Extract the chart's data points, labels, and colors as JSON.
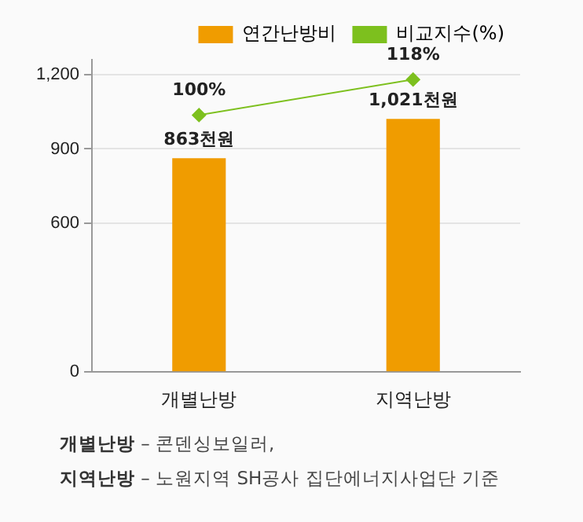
{
  "chart_data": {
    "type": "bar",
    "categories": [
      "개별난방",
      "지역난방"
    ],
    "series": [
      {
        "name": "연간난방비",
        "color": "#f09c00",
        "values": [
          863,
          1021
        ],
        "value_labels": [
          "863천원",
          "1,021천원"
        ]
      },
      {
        "name": "비교지수(%)",
        "type": "line",
        "axis": "y2",
        "color": "#7dc01e",
        "values": [
          100,
          118
        ],
        "value_labels": [
          "100%",
          "118%"
        ],
        "marker": "diamond"
      }
    ],
    "ylim": [
      0,
      1260
    ],
    "yticks": [
      0,
      600,
      900,
      {
        "value": 1200,
        "label": "1,200"
      }
    ],
    "y2lim": [
      -30,
      128
    ],
    "grid": "y",
    "legend": "top right",
    "annotations": [
      "개별난방 – 콘덴싱보일러,",
      "지역난방 – 노원지역 SH공사 집단에너지사업단 기준"
    ]
  }
}
